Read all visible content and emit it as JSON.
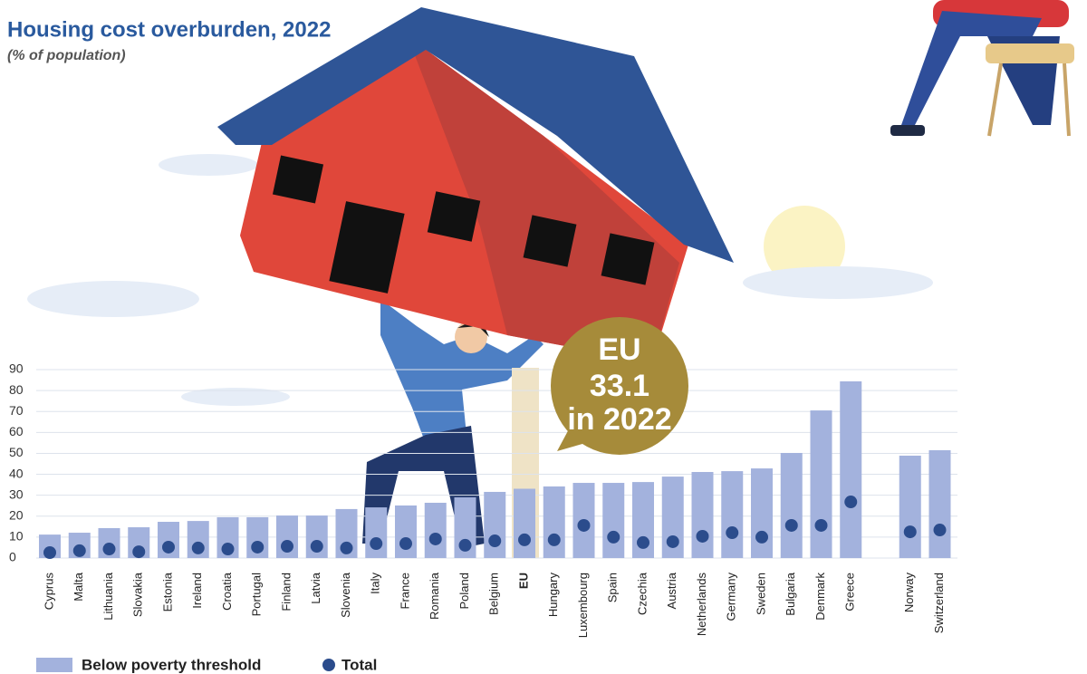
{
  "chart_data": {
    "type": "bar",
    "title": "Housing cost overburden, 2022",
    "subtitle": "(% of population)",
    "categories": [
      "Cyprus",
      "Malta",
      "Lithuania",
      "Slovakia",
      "Estonia",
      "Ireland",
      "Croatia",
      "Portugal",
      "Finland",
      "Latvia",
      "Slovenia",
      "Italy",
      "France",
      "Romania",
      "Poland",
      "Belgium",
      "EU",
      "Hungary",
      "Luxembourg",
      "Spain",
      "Czechia",
      "Austria",
      "Netherlands",
      "Germany",
      "Sweden",
      "Bulgaria",
      "Denmark",
      "Greece",
      null,
      "Norway",
      "Switzerland"
    ],
    "highlight_category": 16,
    "series": [
      {
        "name": "Below poverty threshold",
        "color": "#a3b2dd",
        "values": [
          11.2,
          12.1,
          14.3,
          14.7,
          17.3,
          17.7,
          19.5,
          19.5,
          20.3,
          20.3,
          23.4,
          24.2,
          25.1,
          26.4,
          29.0,
          31.6,
          33.1,
          34.2,
          35.9,
          35.9,
          36.3,
          38.9,
          41.1,
          41.5,
          42.8,
          50.2,
          70.5,
          84.4,
          null,
          48.9,
          51.5
        ]
      },
      {
        "name": "Total",
        "color": "#2b4c8c",
        "values": [
          2.6,
          3.5,
          4.3,
          3.0,
          5.2,
          4.8,
          4.3,
          5.2,
          5.6,
          5.6,
          4.8,
          6.9,
          6.9,
          9.1,
          6.1,
          8.2,
          8.7,
          8.7,
          15.6,
          10.0,
          7.4,
          7.8,
          10.4,
          12.1,
          10.0,
          15.6,
          15.6,
          26.8,
          null,
          12.5,
          13.4
        ]
      }
    ],
    "callout_note": "in 2022",
    "ylim": [
      0,
      90
    ],
    "yticks": [
      0,
      10,
      20,
      30,
      40,
      50,
      60,
      70,
      80,
      90
    ],
    "grid": true
  }
}
